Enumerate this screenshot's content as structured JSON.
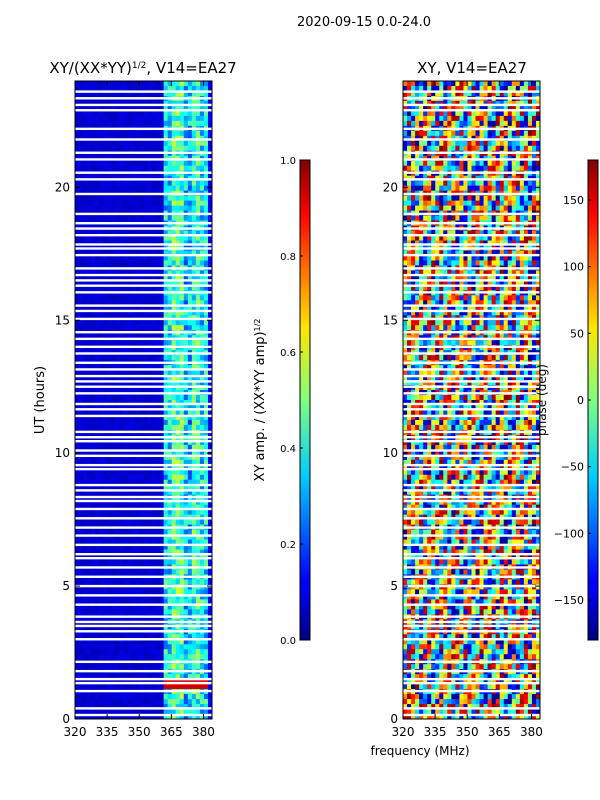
{
  "suptitle": "2020-09-15 0.0-24.0",
  "shared_xlabel": "frequency (MHz)",
  "colors": {
    "panel_background": "#00008f",
    "gap_line": "#ffffff",
    "axis": "#000000"
  },
  "chart_data": [
    {
      "type": "heatmap",
      "title": "XY/(XX*YY)",
      "title_superscript": "1/2",
      "title_suffix": ", V14=EA27",
      "xlabel": "",
      "ylabel": "UT (hours)",
      "xlim": [
        320,
        384
      ],
      "ylim": [
        0,
        24
      ],
      "xticks": [
        320,
        335,
        350,
        365,
        380
      ],
      "yticks": [
        0,
        5,
        10,
        15,
        20
      ],
      "gaps_ut": [
        0.15,
        0.4,
        1.05,
        1.35,
        1.5,
        1.8,
        2.15,
        3.0,
        3.3,
        3.5,
        3.65,
        3.85,
        4.3,
        4.65,
        5.0,
        5.35,
        5.7,
        6.05,
        6.2,
        6.55,
        6.9,
        7.2,
        7.55,
        7.9,
        8.2,
        8.35,
        8.6,
        8.8,
        9.4,
        9.55,
        9.9,
        10.1,
        10.45,
        10.6,
        10.8,
        11.4,
        11.65,
        11.85,
        12.25,
        12.5,
        12.7,
        12.9,
        13.15,
        13.4,
        13.75,
        14.0,
        14.3,
        14.55,
        15.05,
        15.35,
        15.55,
        16.05,
        16.3,
        16.5,
        16.7,
        16.95,
        17.45,
        17.7,
        17.85,
        18.2,
        18.45,
        18.65,
        19.0,
        19.75,
        20.3,
        20.55,
        21.05,
        21.3,
        21.8,
        22.2,
        22.9,
        23.1,
        23.35,
        23.6
      ],
      "bands": [
        {
          "f0": 320,
          "f1": 361,
          "level": 0.08
        },
        {
          "f0": 361,
          "f1": 365,
          "level": 0.35
        },
        {
          "f0": 365,
          "f1": 370,
          "level": 0.45
        },
        {
          "f0": 370,
          "f1": 374,
          "level": 0.32
        },
        {
          "f0": 374,
          "f1": 378,
          "level": 0.42
        },
        {
          "f0": 378,
          "f1": 382,
          "level": 0.36
        },
        {
          "f0": 382,
          "f1": 384,
          "level": 0.12
        }
      ],
      "colorbar": {
        "label": "XY amp. / (XX*YY amp)",
        "label_superscript": "1/2",
        "range": [
          0.0,
          1.0
        ],
        "ticks": [
          0.0,
          0.2,
          0.4,
          0.6,
          0.8,
          1.0
        ],
        "tick_labels": [
          "0.0",
          "0.2",
          "0.4",
          "0.6",
          "0.8",
          "1.0"
        ]
      }
    },
    {
      "type": "heatmap",
      "title": "XY, V14=EA27",
      "xlabel": "frequency (MHz)",
      "ylabel": "",
      "xlim": [
        320,
        384
      ],
      "ylim": [
        0,
        24
      ],
      "xticks": [
        320,
        335,
        350,
        365,
        380
      ],
      "yticks": [
        0,
        5,
        10,
        15,
        20
      ],
      "gaps_ut": [
        0.15,
        0.4,
        1.05,
        1.35,
        1.5,
        1.8,
        2.15,
        3.0,
        3.3,
        3.5,
        3.65,
        3.85,
        4.3,
        4.65,
        5.0,
        5.35,
        5.7,
        6.05,
        6.2,
        6.55,
        6.9,
        7.2,
        7.55,
        7.9,
        8.2,
        8.35,
        8.6,
        8.8,
        9.4,
        9.55,
        9.9,
        10.1,
        10.45,
        10.6,
        10.8,
        11.4,
        11.65,
        11.85,
        12.25,
        12.5,
        12.7,
        12.9,
        13.15,
        13.4,
        13.75,
        14.0,
        14.3,
        14.55,
        15.05,
        15.35,
        15.55,
        16.05,
        16.3,
        16.5,
        16.7,
        16.95,
        17.45,
        17.7,
        17.85,
        18.2,
        18.45,
        18.65,
        19.0,
        19.75,
        20.3,
        20.55,
        21.05,
        21.3,
        21.8,
        22.2,
        22.9,
        23.1,
        23.35,
        23.6
      ],
      "colorbar": {
        "label": "phase (deg)",
        "range": [
          -180,
          180
        ],
        "ticks": [
          -150,
          -100,
          -50,
          0,
          50,
          100,
          150
        ],
        "tick_labels": [
          "−150",
          "−100",
          "−50",
          "0",
          "50",
          "100",
          "150"
        ]
      }
    }
  ]
}
